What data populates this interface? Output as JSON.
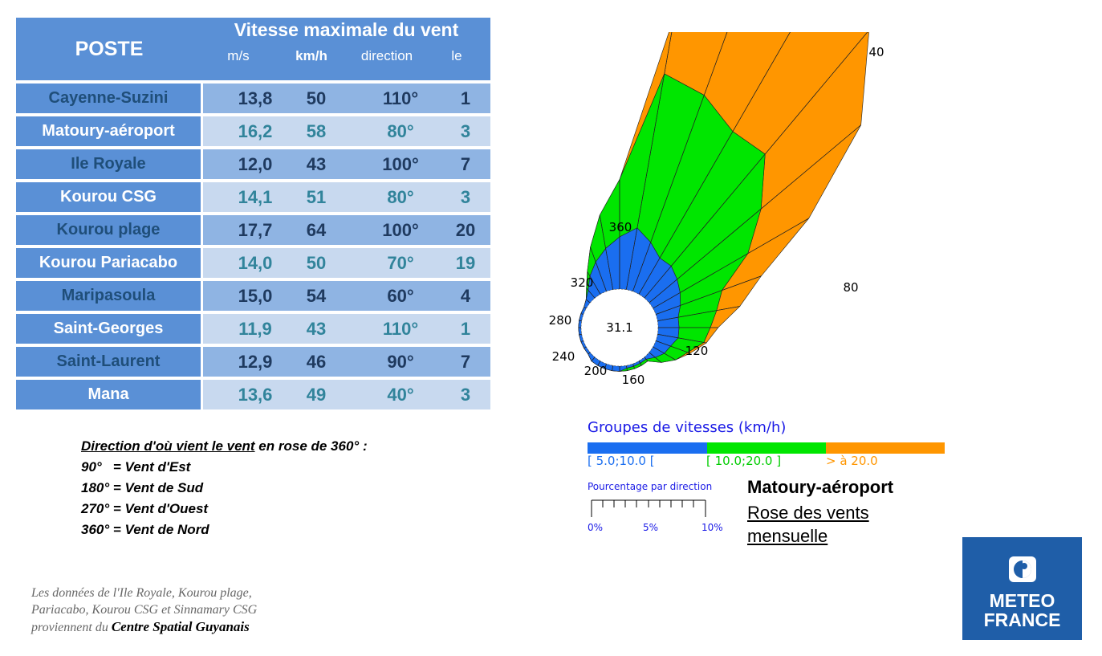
{
  "table": {
    "header_station": "POSTE",
    "header_title": "Vitesse maximale du vent",
    "sub_headers": [
      "m/s",
      "km/h",
      "direction",
      "le"
    ],
    "rows": [
      {
        "station": "Cayenne-Suzini",
        "ms": "13,8",
        "kmh": "50",
        "direction": "110°",
        "day": "1"
      },
      {
        "station": "Matoury-aéroport",
        "ms": "16,2",
        "kmh": "58",
        "direction": "80°",
        "day": "3"
      },
      {
        "station": "Ile Royale",
        "ms": "12,0",
        "kmh": "43",
        "direction": "100°",
        "day": "7"
      },
      {
        "station": "Kourou CSG",
        "ms": "14,1",
        "kmh": "51",
        "direction": "80°",
        "day": "3"
      },
      {
        "station": "Kourou plage",
        "ms": "17,7",
        "kmh": "64",
        "direction": "100°",
        "day": "20"
      },
      {
        "station": "Kourou Pariacabo",
        "ms": "14,0",
        "kmh": "50",
        "direction": "70°",
        "day": "19"
      },
      {
        "station": "Maripasoula",
        "ms": "15,0",
        "kmh": "54",
        "direction": "60°",
        "day": "4"
      },
      {
        "station": "Saint-Georges",
        "ms": "11,9",
        "kmh": "43",
        "direction": "110°",
        "day": "1"
      },
      {
        "station": "Saint-Laurent",
        "ms": "12,9",
        "kmh": "46",
        "direction": "90°",
        "day": "7"
      },
      {
        "station": "Mana",
        "ms": "13,6",
        "kmh": "49",
        "direction": "40°",
        "day": "3"
      }
    ]
  },
  "direction_legend": {
    "title": "Direction d'où vient le vent",
    "title_suffix": " en rose de 360° :",
    "lines": [
      "90°   = Vent d'Est",
      "180° = Vent de Sud",
      "270° = Vent d'Ouest",
      "360° = Vent de Nord"
    ]
  },
  "source_note": {
    "line1": "Les données de l'Ile Royale, Kourou plage,",
    "line2": "Pariacabo, Kourou CSG et Sinnamary CSG",
    "line3_prefix": "proviennent du ",
    "line3_bold": "Centre Spatial Guyanais"
  },
  "chart_data": {
    "type": "wind-rose",
    "station": "Matoury-aéroport",
    "caption_line1": "Rose des vents",
    "caption_line2": "mensuelle",
    "center_label": "31.1",
    "direction_labels": [
      "40",
      "80",
      "120",
      "160",
      "200",
      "240",
      "280",
      "320",
      "360"
    ],
    "directions_deg": [
      10,
      20,
      30,
      40,
      50,
      60,
      70,
      80,
      90,
      100,
      110,
      120,
      130,
      140,
      150,
      160,
      170,
      180,
      190,
      200,
      210,
      220,
      230,
      240,
      250,
      260,
      270,
      280,
      290,
      300,
      310,
      320,
      330,
      340,
      350,
      360
    ],
    "speed_groups_title": "Groupes de vitesses (km/h)",
    "speed_groups": [
      {
        "label": "[ 5.0;10.0 [",
        "color": "#1a6ef0"
      },
      {
        "label": "[ 10.0;20.0 ]",
        "color": "#00e600"
      },
      {
        "label": "> à 20.0",
        "color": "#ff9600"
      }
    ],
    "series": [
      {
        "name": "[ 5.0;10.0 [",
        "values": [
          2.4,
          2.0,
          1.6,
          1.6,
          1.4,
          1.2,
          1.0,
          0.8,
          0.8,
          0.8,
          0.6,
          0.5,
          0.3,
          0.1,
          0.1,
          0.1,
          0.1,
          0.2,
          0.2,
          0.2,
          0.2,
          0.2,
          0.1,
          0.1,
          0.1,
          0.1,
          0.1,
          0.1,
          0.1,
          0.1,
          0.2,
          0.4,
          0.8,
          1.2,
          1.6,
          2.0
        ]
      },
      {
        "name": "[ 10.0;20.0 ]",
        "values": [
          6.0,
          6.0,
          5.6,
          5.6,
          4.2,
          3.0,
          1.7,
          1.5,
          1.2,
          1.0,
          0.7,
          0.5,
          0.3,
          0.1,
          0.1,
          0.1,
          0.1,
          0.0,
          0.0,
          0.0,
          0.0,
          0.0,
          0.0,
          0.0,
          0.0,
          0.0,
          0.0,
          0.0,
          0.0,
          0.0,
          0.0,
          0.1,
          0.2,
          0.6,
          1.3,
          2.2
        ]
      },
      {
        "name": "> à 20.0",
        "values": [
          2.3,
          6.4,
          6.4,
          6.2,
          5.0,
          2.7,
          1.6,
          0.9,
          0.3,
          0.1,
          0.1,
          0.0,
          0.0,
          0.0,
          0.0,
          0.0,
          0.0,
          0.0,
          0.0,
          0.0,
          0.0,
          0.0,
          0.0,
          0.0,
          0.0,
          0.0,
          0.0,
          0.0,
          0.0,
          0.0,
          0.0,
          0.0,
          0.0,
          0.0,
          0.0,
          0.0
        ]
      }
    ],
    "percent_scale_title": "Pourcentage par direction",
    "percent_scale_labels": [
      "0%",
      "5%",
      "10%"
    ]
  },
  "logo": {
    "line1": "METEO",
    "line2": "FRANCE",
    "bg_color": "#1f5ea8"
  },
  "colors": {
    "header_bg": "#5a90d6",
    "row_dark": "#8fb4e3",
    "row_light": "#c8d9ef"
  }
}
